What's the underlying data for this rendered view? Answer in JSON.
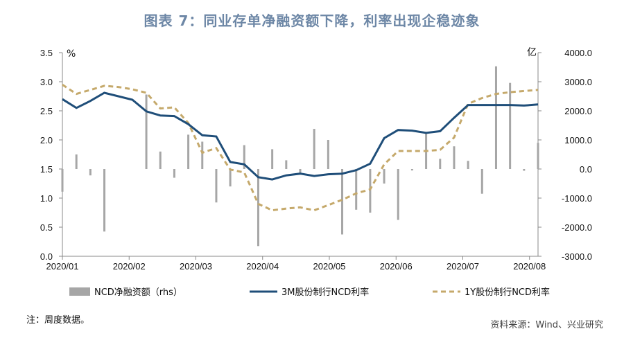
{
  "title": "图表 7：同业存单净融资额下降，利率出现企稳迹象",
  "note": "注：周度数据。",
  "source": "资料来源：Wind、兴业研究",
  "colors": {
    "bar": "#a6a6a6",
    "line3m": "#1f4e79",
    "line1y": "#c5a96b",
    "title": "#6d87a6"
  },
  "chart_data": {
    "type": "bar+line",
    "left_unit": "%",
    "right_unit": "亿",
    "ylim_left": [
      0.0,
      3.5
    ],
    "ylim_right": [
      -3000,
      4000
    ],
    "yticks_left": [
      "0.0",
      "0.5",
      "1.0",
      "1.5",
      "2.0",
      "2.5",
      "3.0",
      "3.5"
    ],
    "yticks_right": [
      "-3000.0",
      "-2000.0",
      "-1000.0",
      "0.0",
      "1000.0",
      "2000.0",
      "3000.0",
      "4000.0"
    ],
    "xticks": [
      "2020/01",
      "2020/02",
      "2020/03",
      "2020/04",
      "2020/05",
      "2020/06",
      "2020/07",
      "2020/08"
    ],
    "weeks": 35,
    "legend": [
      "NCD净融资额（rhs）",
      "3M股份制行NCD利率",
      "1Y股份制行NCD利率"
    ],
    "series": [
      {
        "name": "NCD净融资额（rhs）",
        "type": "bar",
        "axis": "right",
        "values": [
          -780,
          500,
          -220,
          -2150,
          0,
          0,
          2560,
          600,
          -300,
          1180,
          940,
          -1150,
          -600,
          820,
          -2650,
          680,
          300,
          -200,
          1380,
          1000,
          -2250,
          -1400,
          -1500,
          -500,
          -1750,
          -50,
          1260,
          350,
          780,
          280,
          -850,
          3530,
          2960,
          -60,
          900
        ]
      },
      {
        "name": "3M股份制行NCD利率",
        "type": "line",
        "axis": "left",
        "values": [
          2.7,
          2.55,
          2.67,
          2.81,
          2.75,
          2.69,
          2.49,
          2.42,
          2.41,
          2.27,
          2.08,
          2.06,
          1.62,
          1.58,
          1.36,
          1.32,
          1.39,
          1.42,
          1.38,
          1.41,
          1.42,
          1.48,
          1.59,
          2.03,
          2.17,
          2.16,
          2.12,
          2.15,
          2.38,
          2.6,
          2.6,
          2.6,
          2.6,
          2.59,
          2.61
        ]
      },
      {
        "name": "1Y股份制行NCD利率",
        "type": "line",
        "axis": "left",
        "values": [
          2.95,
          2.79,
          2.86,
          2.93,
          2.91,
          2.87,
          2.81,
          2.54,
          2.56,
          2.29,
          1.78,
          1.86,
          1.49,
          1.44,
          0.9,
          0.79,
          0.82,
          0.84,
          0.79,
          0.88,
          0.97,
          1.08,
          1.15,
          1.58,
          1.81,
          1.81,
          1.81,
          1.83,
          2.04,
          2.62,
          2.72,
          2.79,
          2.82,
          2.84,
          2.86
        ]
      }
    ]
  }
}
